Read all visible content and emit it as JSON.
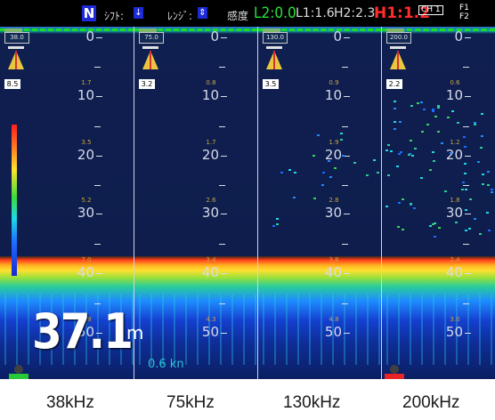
{
  "header": {
    "north_mode": "N",
    "shift_label": "ｼﾌﾄ:",
    "shift_icon": "↓",
    "range_label": "ﾚﾝｼﾞ:",
    "range_icon": "⇕",
    "sensitivity_label": "感度",
    "l2": "L2:0.0",
    "l1": "L1:1.6",
    "h2": "H2:2.3",
    "h1": "H1:1.2",
    "ch_icon": "CH 1",
    "f1_label": "F1",
    "f2_label": "F2"
  },
  "channels": [
    {
      "freq_box": "38.0",
      "gain": "8.5",
      "depths": [
        "0",
        "10",
        "20",
        "30",
        "40",
        "50"
      ],
      "sub_values": [
        "1.7",
        "3.5",
        "5.2",
        "7.0",
        "8.8"
      ]
    },
    {
      "freq_box": "75.0",
      "gain": "3.2",
      "depths": [
        "0",
        "10",
        "20",
        "30",
        "40",
        "50"
      ],
      "sub_values": [
        "0.8",
        "1.7",
        "2.6",
        "3.4",
        "4.3"
      ]
    },
    {
      "freq_box": "130.0",
      "gain": "3.5",
      "depths": [
        "0",
        "10",
        "20",
        "30",
        "40",
        "50"
      ],
      "sub_values": [
        "0.9",
        "1.9",
        "2.8",
        "3.8",
        "4.8"
      ]
    },
    {
      "freq_box": "200.0",
      "gain": "2.2",
      "depths": [
        "0",
        "10",
        "20",
        "30",
        "40",
        "50"
      ],
      "sub_values": [
        "0.6",
        "1.2",
        "1.8",
        "2.4",
        "3.0"
      ]
    }
  ],
  "readout": {
    "depth_value": "37.1",
    "depth_unit": "m",
    "speed": "0.6 kn"
  },
  "frequency_labels": [
    "38kHz",
    "75kHz",
    "130kHz",
    "200kHz"
  ],
  "colors": {
    "screen_bg": "#0d1d4a",
    "header_bg": "#000000",
    "accent_green": "#26e23a",
    "accent_red": "#ff2c2c",
    "speed_cyan": "#2cc6d4"
  }
}
